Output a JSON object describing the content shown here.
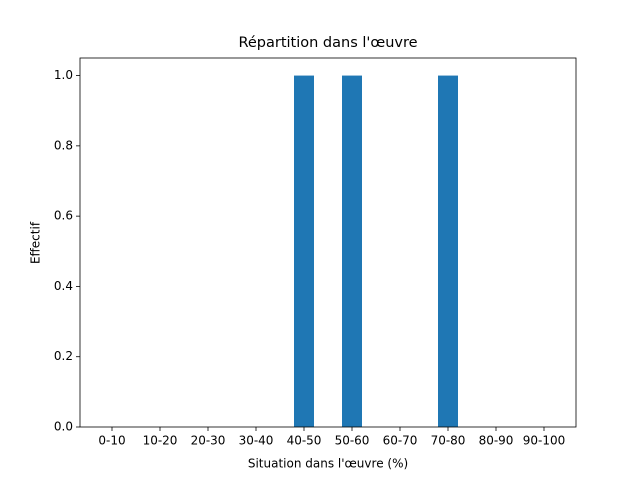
{
  "chart_data": {
    "type": "bar",
    "title": "Répartition dans l'œuvre",
    "x_label": "Situation dans l'œuvre (%)",
    "y_label": "Effectif",
    "categories": [
      "0-10",
      "10-20",
      "20-30",
      "30-40",
      "40-50",
      "50-60",
      "60-70",
      "70-80",
      "80-90",
      "90-100"
    ],
    "values": [
      0,
      0,
      0,
      0,
      1,
      1,
      0,
      1,
      0,
      0
    ],
    "color": "#1f77b4",
    "ylim": [
      0,
      1.05
    ],
    "yticks": [
      {
        "value": 0,
        "label": "0.0"
      },
      {
        "value": 0.2,
        "label": "0.2"
      },
      {
        "value": 0.4,
        "label": "0.4"
      },
      {
        "value": 0.6,
        "label": "0.6"
      },
      {
        "value": 0.8,
        "label": "0.8"
      },
      {
        "value": 1,
        "label": "1.0"
      }
    ],
    "grid": false
  }
}
